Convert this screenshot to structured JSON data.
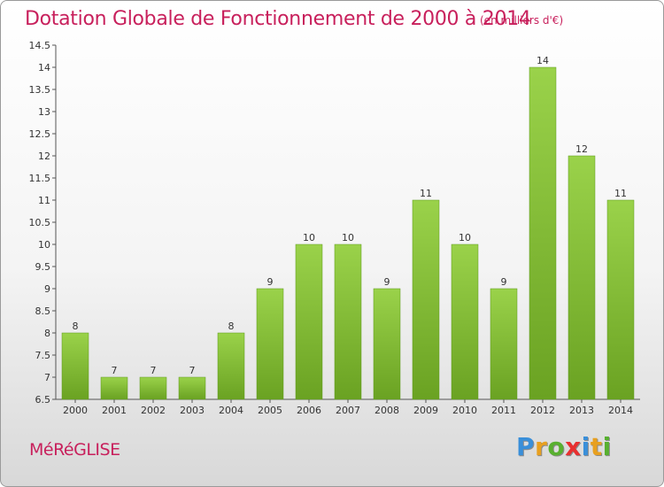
{
  "header": {
    "title": "Dotation Globale de Fonctionnement de 2000 à 2014",
    "subtitle": "(en milliers d'€)"
  },
  "footer": {
    "commune": "MéRéGLISE",
    "logo_letters": [
      "P",
      "r",
      "o",
      "x",
      "i",
      "t",
      "i"
    ],
    "logo_colors": [
      "#3a8fd9",
      "#e8a020",
      "#58b030",
      "#e83030",
      "#3a8fd9",
      "#e8a020",
      "#58b030"
    ]
  },
  "chart_data": {
    "type": "bar",
    "title": "Dotation Globale de Fonctionnement de 2000 à 2014",
    "subtitle": "(en milliers d'€)",
    "categories": [
      "2000",
      "2001",
      "2002",
      "2003",
      "2004",
      "2005",
      "2006",
      "2007",
      "2008",
      "2009",
      "2010",
      "2011",
      "2012",
      "2013",
      "2014"
    ],
    "values": [
      8,
      7,
      7,
      7,
      8,
      9,
      10,
      10,
      9,
      11,
      10,
      9,
      14,
      12,
      11
    ],
    "ylim": [
      6.5,
      14.5
    ],
    "yticks": [
      6.5,
      7,
      7.5,
      8,
      8.5,
      9,
      9.5,
      10,
      10.5,
      11,
      11.5,
      12,
      12.5,
      13,
      13.5,
      14,
      14.5
    ],
    "grid": false,
    "bar_color": "#86c634"
  }
}
